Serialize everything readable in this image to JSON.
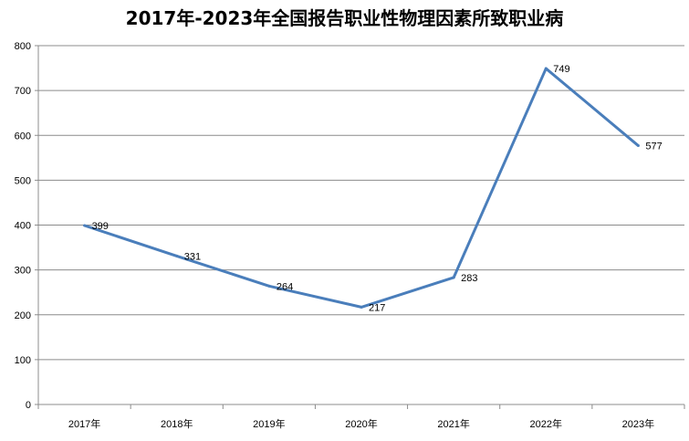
{
  "chart_data": {
    "type": "line",
    "title": "2017年-2023年全国报告职业性物理因素所致职业病",
    "categories": [
      "2017年",
      "2018年",
      "2019年",
      "2020年",
      "2021年",
      "2022年",
      "2023年"
    ],
    "series": [
      {
        "values": [
          399,
          331,
          264,
          217,
          283,
          749,
          577
        ],
        "color": "#4a7ebb"
      }
    ],
    "ylim": [
      0,
      800
    ],
    "yticks": [
      "0",
      "100",
      "200",
      "300",
      "400",
      "500",
      "600",
      "700",
      "800"
    ],
    "grid": true,
    "legend": "none",
    "xlabel": "",
    "ylabel": ""
  }
}
